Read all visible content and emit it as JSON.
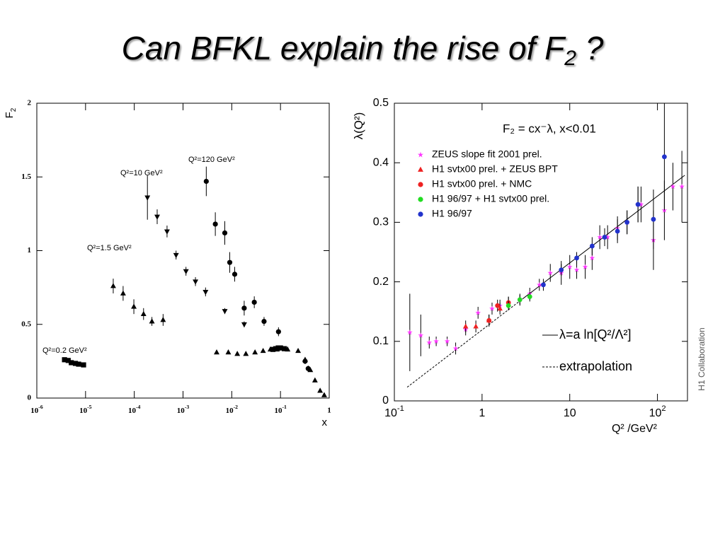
{
  "slide_title": {
    "text": "Can BFKL explain the rise of F",
    "subscript": "2",
    "end": " ?"
  },
  "chart_data": [
    {
      "type": "scatter",
      "xlog": true,
      "xlim": [
        1e-06,
        1
      ],
      "ylim": [
        0,
        2
      ],
      "xticks": [
        {
          "value": 1e-06,
          "label": "10",
          "sup": "-6"
        },
        {
          "value": 1e-05,
          "label": "10",
          "sup": "-5"
        },
        {
          "value": 0.0001,
          "label": "10",
          "sup": "-4"
        },
        {
          "value": 0.001,
          "label": "10",
          "sup": "-3"
        },
        {
          "value": 0.01,
          "label": "10",
          "sup": "-2"
        },
        {
          "value": 0.1,
          "label": "10",
          "sup": "-1"
        },
        1
      ],
      "yticks": [
        0,
        0.5,
        1,
        1.5,
        2
      ],
      "ylabel": "F",
      "ylabel_sub": "2",
      "xlabel": "x",
      "annotations": [
        "Q²=0.2 GeV²",
        "Q²=1.5 GeV²",
        "Q²=10 GeV²",
        "Q²=120 GeV²"
      ],
      "series": [
        {
          "marker": "square",
          "color": "#000000",
          "x": [
            3.7e-06,
            4.4e-06,
            5.1e-06,
            6.2e-06,
            7.2e-06,
            9.1e-06,
            0.07,
            0.08,
            0.09,
            0.1,
            0.12
          ],
          "values": [
            0.26,
            0.255,
            0.24,
            0.235,
            0.23,
            0.225,
            0.33,
            0.335,
            0.34,
            0.34,
            0.335
          ],
          "errors": [
            0.01,
            0.01,
            0.01,
            0.01,
            0.01,
            0.01,
            0.01,
            0.01,
            0.01,
            0.01,
            0.01
          ]
        },
        {
          "marker": "triangle-up",
          "color": "#000000",
          "x": [
            3.7e-05,
            5.9e-05,
            9.8e-05,
            0.000155,
            0.00023,
            0.00039,
            0.0049,
            0.0085,
            0.013,
            0.0195,
            0.03,
            0.044,
            0.062,
            0.085,
            0.14,
            0.23,
            0.32,
            0.41,
            0.51,
            0.65,
            0.79
          ],
          "values": [
            0.76,
            0.71,
            0.62,
            0.57,
            0.52,
            0.53,
            0.31,
            0.31,
            0.3,
            0.3,
            0.31,
            0.32,
            0.33,
            0.33,
            0.33,
            0.32,
            0.26,
            0.19,
            0.12,
            0.05,
            0.02
          ],
          "errors": [
            0.05,
            0.05,
            0.05,
            0.04,
            0.03,
            0.04,
            0.01,
            0.01,
            0.01,
            0.01,
            0.01,
            0.01,
            0.01,
            0.01,
            0.01,
            0.01,
            0.01,
            0.01,
            0.01,
            0.01,
            0.01
          ]
        },
        {
          "marker": "triangle-down",
          "color": "#000000",
          "x": [
            0.000186,
            0.000295,
            0.00047,
            0.00072,
            0.00115,
            0.0018,
            0.0029,
            0.0072,
            0.018
          ],
          "values": [
            1.36,
            1.23,
            1.13,
            0.97,
            0.86,
            0.79,
            0.72,
            0.59,
            0.5
          ],
          "errors": [
            0.15,
            0.05,
            0.04,
            0.03,
            0.03,
            0.03,
            0.03,
            0.02,
            0.02
          ]
        },
        {
          "marker": "circle",
          "color": "#000000",
          "x": [
            0.003,
            0.0046,
            0.0072,
            0.0091,
            0.0115,
            0.018,
            0.029,
            0.046,
            0.091,
            0.32,
            0.37
          ],
          "values": [
            1.47,
            1.18,
            1.12,
            0.92,
            0.84,
            0.61,
            0.65,
            0.52,
            0.45,
            0.25,
            0.2
          ],
          "errors": [
            0.1,
            0.08,
            0.08,
            0.07,
            0.05,
            0.05,
            0.04,
            0.03,
            0.03,
            0.02,
            0.02
          ]
        }
      ]
    },
    {
      "type": "scatter",
      "xlog": true,
      "xlim": [
        0.1,
        220
      ],
      "ylim": [
        0,
        0.5
      ],
      "xticks": [
        {
          "value": 0.1,
          "label": "10",
          "sup": "-1"
        },
        1,
        10,
        {
          "value": 100,
          "label": "10",
          "sup": "2"
        }
      ],
      "yticks": [
        0,
        0.1,
        0.2,
        0.3,
        0.4,
        0.5
      ],
      "ylabel": "λ(Q²)",
      "xlabel": "Q² /GeV²",
      "annotations": [
        "F₂ = cx⁻λ,  x<0.01"
      ],
      "side_note": "H1 Collaboration",
      "legend": "upper left",
      "series": [
        {
          "name": "ZEUS slope fit 2001 prel.",
          "marker": "star",
          "color": "#ff33ff",
          "x": [
            0.15,
            0.2,
            0.25,
            0.3,
            0.4,
            0.5,
            0.65,
            0.9,
            1.3,
            1.6,
            2,
            2.7,
            3.5,
            4.5,
            6,
            8,
            10,
            12,
            15,
            18,
            22,
            27,
            35,
            45,
            60,
            65,
            90,
            120,
            150,
            190
          ],
          "values": [
            0.115,
            0.11,
            0.098,
            0.1,
            0.1,
            0.088,
            0.12,
            0.148,
            0.155,
            0.16,
            0.165,
            0.17,
            0.18,
            0.195,
            0.215,
            0.215,
            0.225,
            0.22,
            0.225,
            0.24,
            0.275,
            0.275,
            0.29,
            0.3,
            0.33,
            0.33,
            0.27,
            0.32,
            0.36,
            0.36
          ],
          "errors": [
            0.065,
            0.035,
            0.01,
            0.008,
            0.008,
            0.01,
            0.01,
            0.01,
            0.01,
            0.01,
            0.01,
            0.01,
            0.01,
            0.01,
            0.015,
            0.02,
            0.02,
            0.015,
            0.02,
            0.02,
            0.02,
            0.02,
            0.02,
            0.02,
            0.03,
            0.03,
            0.05,
            0.05,
            0.04,
            0.06
          ]
        },
        {
          "name": "H1 svtx00 prel. + ZEUS BPT",
          "marker": "triangle-up",
          "color": "#ee2222",
          "x": [
            0.65,
            0.85,
            1.2,
            1.6
          ],
          "values": [
            0.125,
            0.125,
            0.135,
            0.155
          ],
          "errors": [
            0.01,
            0.01,
            0.01,
            0.01
          ]
        },
        {
          "name": "H1 svtx00 prel. + NMC",
          "marker": "circle",
          "color": "#ee2222",
          "x": [
            1.2,
            1.5,
            2
          ],
          "values": [
            0.135,
            0.16,
            0.165
          ],
          "errors": [
            0.01,
            0.01,
            0.01
          ]
        },
        {
          "name": "H1 96/97 + H1 svtx00 prel.",
          "marker": "circle",
          "color": "#22dd22",
          "x": [
            2,
            2.7,
            3.5
          ],
          "values": [
            0.16,
            0.17,
            0.175
          ],
          "errors": [
            0.008,
            0.008,
            0.008
          ]
        },
        {
          "name": "H1 96/97",
          "marker": "circle",
          "color": "#2233cc",
          "x": [
            5,
            8,
            12,
            18,
            25,
            35,
            45,
            60,
            90,
            120
          ],
          "values": [
            0.195,
            0.22,
            0.24,
            0.26,
            0.275,
            0.285,
            0.3,
            0.33,
            0.305,
            0.41
          ],
          "errors": [
            0.01,
            0.01,
            0.01,
            0.015,
            0.015,
            0.02,
            0.02,
            0.03,
            0.05,
            0.09
          ]
        }
      ],
      "lines": [
        {
          "name": "λ=a ln[Q²/Λ²]",
          "dash": false,
          "color": "#000000",
          "x": [
            3,
            205
          ],
          "values": [
            0.173,
            0.379
          ]
        },
        {
          "name": "extrapolation",
          "dash": true,
          "color": "#000000",
          "x": [
            0.14,
            3
          ],
          "values": [
            0.023,
            0.173
          ]
        }
      ]
    }
  ]
}
